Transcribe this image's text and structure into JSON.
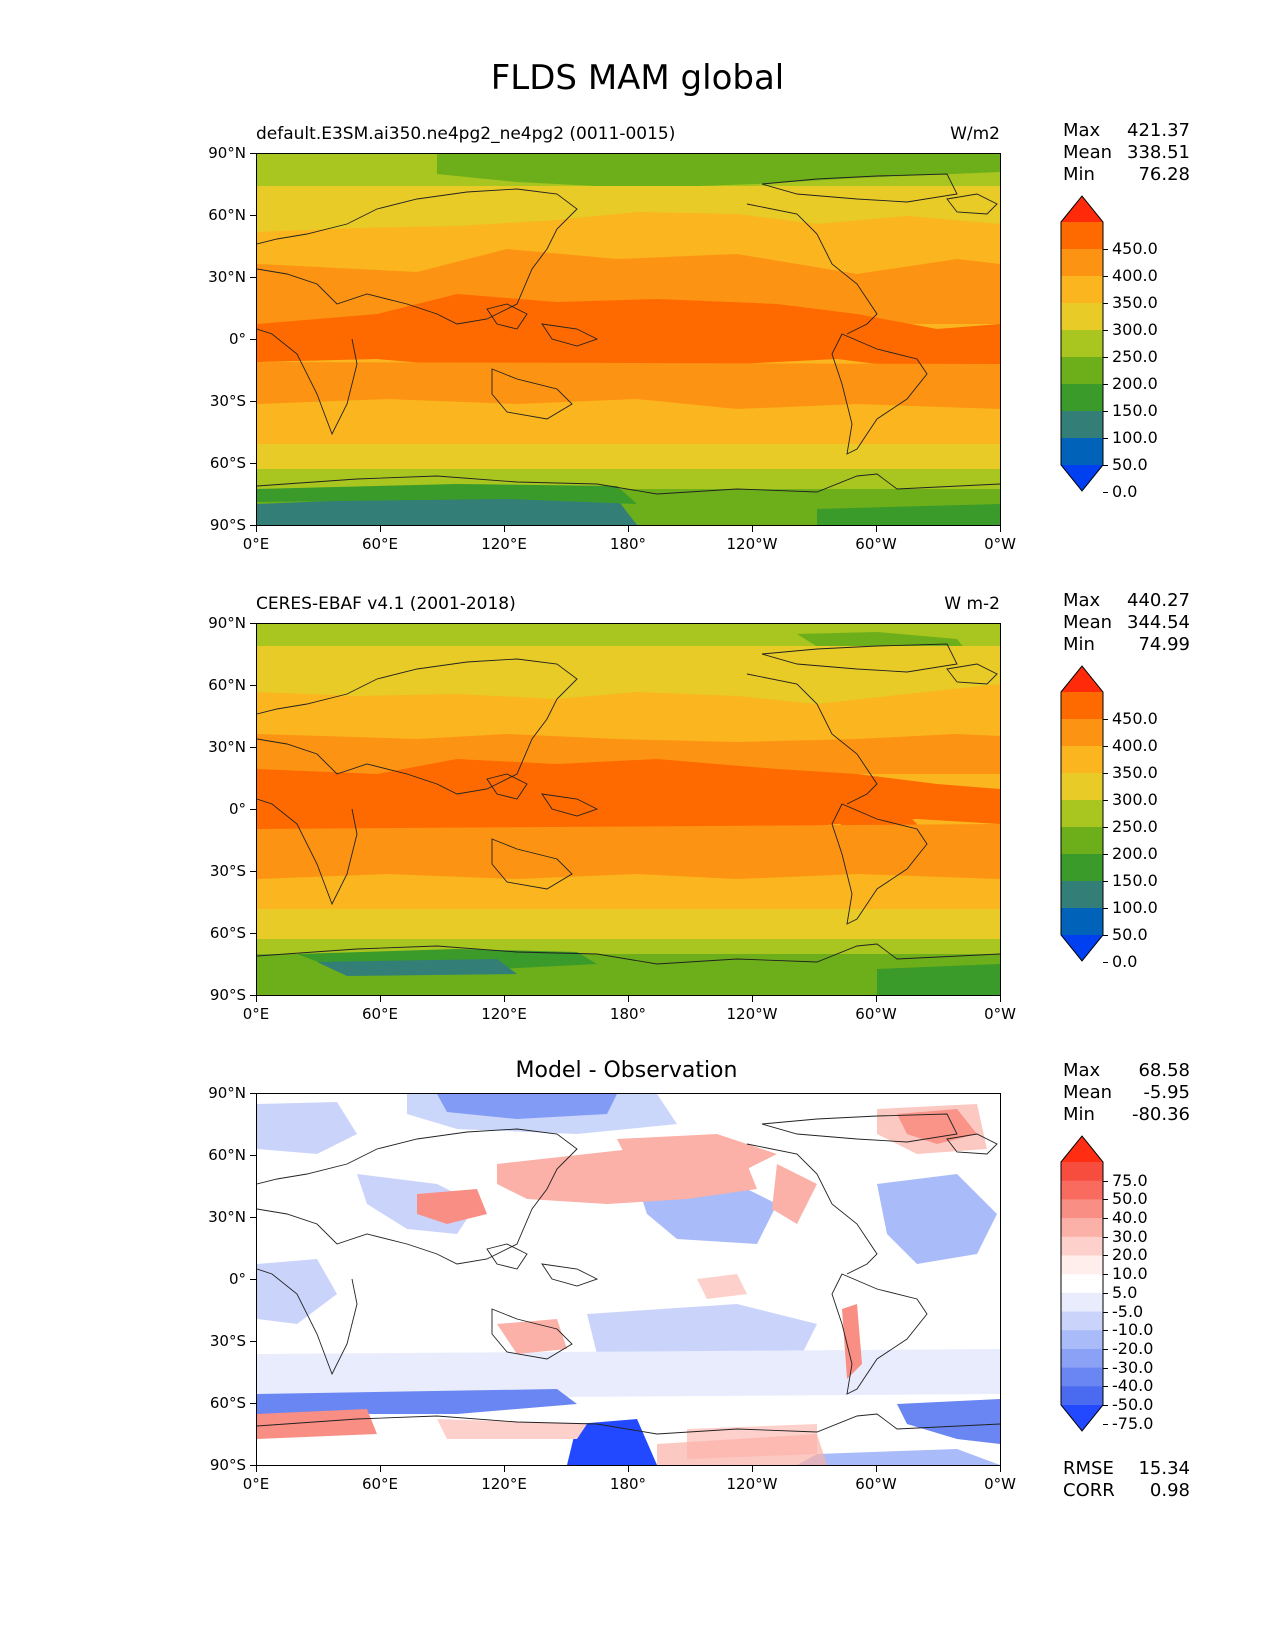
{
  "figure": {
    "title": "FLDS MAM global"
  },
  "axes": {
    "y_ticks": [
      "90°N",
      "60°N",
      "30°N",
      "0°",
      "30°S",
      "60°S",
      "90°S"
    ],
    "x_ticks": [
      "0°E",
      "60°E",
      "120°E",
      "180°",
      "120°W",
      "60°W",
      "0°W"
    ]
  },
  "panels": [
    {
      "id": "model",
      "title_left": "default.E3SM.ai350.ne4pg2_ne4pg2 (0011-0015)",
      "title_right": "W/m2",
      "title_center": "",
      "stats": [
        {
          "label": "Max",
          "value": "421.37"
        },
        {
          "label": "Mean",
          "value": "338.51"
        },
        {
          "label": "Min",
          "value": "76.28"
        }
      ],
      "colorbar": {
        "labels": [
          "450.0",
          "400.0",
          "350.0",
          "300.0",
          "250.0",
          "200.0",
          "150.0",
          "100.0",
          "50.0",
          "0.0"
        ],
        "colors": [
          "#ff2a0a",
          "#ff6a00",
          "#fd9312",
          "#fbb51e",
          "#e8cb26",
          "#a8c520",
          "#6caf1a",
          "#3a9a2a",
          "#337f78",
          "#0062b8",
          "#0040f0"
        ]
      },
      "footer": []
    },
    {
      "id": "obs",
      "title_left": "CERES-EBAF v4.1 (2001-2018)",
      "title_right": "W m-2",
      "title_center": "",
      "stats": [
        {
          "label": "Max",
          "value": "440.27"
        },
        {
          "label": "Mean",
          "value": "344.54"
        },
        {
          "label": "Min",
          "value": "74.99"
        }
      ],
      "colorbar": {
        "labels": [
          "450.0",
          "400.0",
          "350.0",
          "300.0",
          "250.0",
          "200.0",
          "150.0",
          "100.0",
          "50.0",
          "0.0"
        ],
        "colors": [
          "#ff2a0a",
          "#ff6a00",
          "#fd9312",
          "#fbb51e",
          "#e8cb26",
          "#a8c520",
          "#6caf1a",
          "#3a9a2a",
          "#337f78",
          "#0062b8",
          "#0040f0"
        ]
      },
      "footer": []
    },
    {
      "id": "diff",
      "title_left": "",
      "title_right": "",
      "title_center": "Model - Observation",
      "stats": [
        {
          "label": "Max",
          "value": "68.58"
        },
        {
          "label": "Mean",
          "value": "-5.95"
        },
        {
          "label": "Min",
          "value": "-80.36"
        }
      ],
      "colorbar": {
        "labels": [
          "75.0",
          "50.0",
          "40.0",
          "30.0",
          "20.0",
          "10.0",
          "5.0",
          "-5.0",
          "-10.0",
          "-20.0",
          "-30.0",
          "-40.0",
          "-50.0",
          "-75.0"
        ],
        "colors": [
          "#ff2d12",
          "#f74d3e",
          "#f86b5e",
          "#f98e84",
          "#fbb0a8",
          "#fdd0cb",
          "#ffeeec",
          "#ffffff",
          "#e8ecfd",
          "#cad4fb",
          "#a9bbf8",
          "#8aa1f5",
          "#6a86f2",
          "#4a6bef",
          "#2249ff"
        ]
      },
      "footer": [
        {
          "label": "RMSE",
          "value": "15.34"
        },
        {
          "label": "CORR",
          "value": "0.98"
        }
      ]
    }
  ]
}
